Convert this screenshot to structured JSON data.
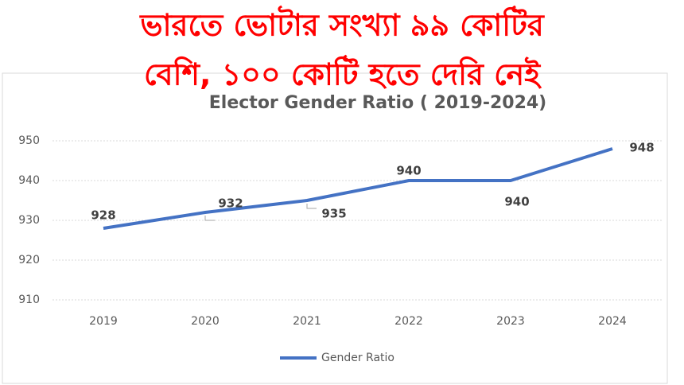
{
  "headline": {
    "lines": [
      "ভারতে ভোটার সংখ্যা ৯৯ কোটির",
      "বেশি, ১০০ কোটি হতে দেরি নেই"
    ]
  },
  "chart_data": {
    "type": "line",
    "title": "Elector Gender Ratio ( 2019-2024)",
    "categories": [
      "2019",
      "2020",
      "2021",
      "2022",
      "2023",
      "2024"
    ],
    "series": [
      {
        "name": "Gender Ratio",
        "color": "#4472c4",
        "values": [
          928,
          932,
          935,
          940,
          940,
          948
        ]
      }
    ],
    "ylim": [
      910,
      950
    ],
    "yticks": [
      910,
      920,
      930,
      940,
      950
    ],
    "grid": true,
    "legend": "bottom"
  }
}
